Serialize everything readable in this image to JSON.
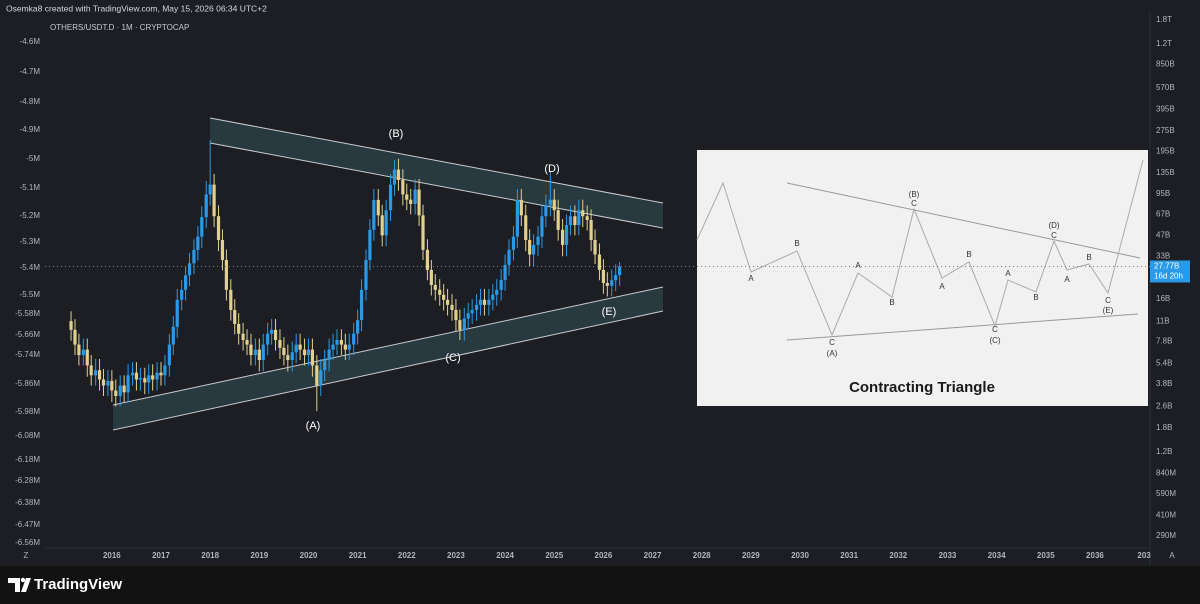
{
  "header": {
    "credit": "Osemka8 created with TradingView.com, May 15, 2026 06:34 UTC+2"
  },
  "chart_data": {
    "type": "candlestick",
    "title": "OTHERS/USDT.D · 1M · CRYPTOCAP",
    "log_y": true,
    "up_color": "#2a9ae6",
    "down_color": "#e2d08c",
    "x": [
      2015.17,
      2015.25,
      2015.33,
      2015.42,
      2015.5,
      2015.58,
      2015.67,
      2015.75,
      2015.83,
      2015.92,
      2016,
      2016.08,
      2016.17,
      2016.25,
      2016.33,
      2016.42,
      2016.5,
      2016.58,
      2016.67,
      2016.75,
      2016.83,
      2016.92,
      2017,
      2017.08,
      2017.17,
      2017.25,
      2017.33,
      2017.42,
      2017.5,
      2017.58,
      2017.67,
      2017.75,
      2017.83,
      2017.92,
      2018,
      2018.08,
      2018.17,
      2018.25,
      2018.33,
      2018.42,
      2018.5,
      2018.58,
      2018.67,
      2018.75,
      2018.83,
      2018.92,
      2019,
      2019.08,
      2019.17,
      2019.25,
      2019.33,
      2019.42,
      2019.5,
      2019.58,
      2019.67,
      2019.75,
      2019.83,
      2019.92,
      2020,
      2020.08,
      2020.17,
      2020.25,
      2020.33,
      2020.42,
      2020.5,
      2020.58,
      2020.67,
      2020.75,
      2020.83,
      2020.92,
      2021,
      2021.08,
      2021.17,
      2021.25,
      2021.33,
      2021.42,
      2021.5,
      2021.58,
      2021.67,
      2021.75,
      2021.83,
      2021.92,
      2022,
      2022.08,
      2022.17,
      2022.25,
      2022.33,
      2022.42,
      2022.5,
      2022.58,
      2022.67,
      2022.75,
      2022.83,
      2022.92,
      2023,
      2023.08,
      2023.17,
      2023.25,
      2023.33,
      2023.42,
      2023.5,
      2023.58,
      2023.67,
      2023.75,
      2023.83,
      2023.92,
      2024,
      2024.08,
      2024.17,
      2024.25,
      2024.33,
      2024.42,
      2024.5,
      2024.58,
      2024.67,
      2024.75,
      2024.83,
      2024.92,
      2025,
      2025.08,
      2025.17,
      2025.25,
      2025.33,
      2025.42,
      2025.5,
      2025.58,
      2025.67,
      2025.75,
      2025.83,
      2025.92,
      2026,
      2026.08,
      2026.17,
      2026.25,
      2026.33
    ],
    "open": [
      11,
      9.5,
      7.4,
      6.2,
      6.8,
      5.2,
      4.4,
      4.8,
      4.1,
      3.7,
      4.0,
      3.4,
      3.1,
      3.7,
      3.3,
      4.4,
      4.6,
      4.1,
      4.2,
      3.9,
      4.4,
      4.1,
      4.6,
      4.4,
      5.2,
      7.4,
      10,
      15.8,
      18.7,
      23.9,
      29.3,
      36.8,
      46,
      64,
      94,
      111,
      65,
      43.5,
      31,
      18.7,
      13.3,
      10.5,
      8.9,
      8,
      7.4,
      6.2,
      6.8,
      5.7,
      7.4,
      8.9,
      9.5,
      8,
      7,
      6.2,
      5.7,
      6.5,
      7.4,
      6.8,
      6.2,
      6.8,
      5.2,
      3.7,
      4.8,
      5.7,
      6.8,
      7.4,
      8,
      7.4,
      6.8,
      7.4,
      8.9,
      11.2,
      18.7,
      31,
      51.6,
      85.7,
      66,
      47,
      72,
      111,
      143,
      120,
      94,
      86,
      80,
      102,
      66,
      36.8,
      26.2,
      20.3,
      18.7,
      17.2,
      15.8,
      14.5,
      13.3,
      11.2,
      9.5,
      11.5,
      12.6,
      13.3,
      14.5,
      15.8,
      14.5,
      15.8,
      17.2,
      18.7,
      22.1,
      28.5,
      36.8,
      46,
      85.7,
      66,
      43.5,
      34,
      40,
      46,
      65,
      78,
      86,
      72,
      51.6,
      40,
      56,
      65,
      56,
      72,
      65,
      61,
      43.5,
      34,
      26.2,
      21,
      20,
      22,
      24
    ],
    "high": [
      13,
      11.4,
      8.9,
      8.2,
      8.2,
      6.2,
      5.8,
      5.8,
      4.9,
      4.8,
      4.8,
      4.1,
      4.4,
      4.4,
      5.3,
      5.5,
      5.5,
      5,
      5,
      5.3,
      5.3,
      5.5,
      5.5,
      6.2,
      8.9,
      12,
      19,
      22,
      28,
      35,
      44,
      55,
      77,
      118,
      236,
      133,
      78,
      52,
      37,
      22.4,
      16,
      12.6,
      10.7,
      9.6,
      8.9,
      8.2,
      8.2,
      8.9,
      10.7,
      11.4,
      11.4,
      9.6,
      8.4,
      7.4,
      7.8,
      8.9,
      8.9,
      8.2,
      8.2,
      8.2,
      6.2,
      5.8,
      6.8,
      8.2,
      8.9,
      9.6,
      9.6,
      8.9,
      8.9,
      10.7,
      13.4,
      22.4,
      37,
      62,
      103,
      103,
      79,
      86,
      133,
      168,
      172,
      144,
      113,
      103,
      122,
      122,
      79,
      44,
      31,
      24.4,
      22.4,
      20.6,
      19,
      17.4,
      16,
      13.4,
      13.8,
      15,
      16,
      17.4,
      19,
      19,
      19,
      20.6,
      22.4,
      26.5,
      34,
      44,
      55,
      103,
      103,
      79,
      52,
      48,
      55,
      78,
      94,
      140,
      103,
      86,
      62,
      67,
      78,
      78,
      86,
      86,
      78,
      73,
      52,
      41,
      31.4,
      25.2,
      26.4,
      28.8,
      30
    ],
    "low": [
      7.9,
      6.2,
      5.2,
      5.2,
      4.3,
      3.7,
      3.7,
      3.4,
      3.1,
      3.1,
      2.8,
      2.6,
      2.6,
      2.8,
      2.8,
      3.7,
      3.4,
      3.4,
      3.2,
      3.2,
      3.4,
      3.4,
      3.7,
      3.7,
      4.3,
      6.2,
      8.3,
      13.2,
      15.6,
      19.9,
      24.4,
      30.7,
      38,
      53,
      78,
      54,
      36,
      26,
      15.6,
      11.1,
      8.8,
      7.4,
      6.7,
      6.2,
      5.2,
      5.2,
      4.7,
      4.7,
      6.2,
      7.4,
      6.7,
      5.8,
      5.2,
      4.7,
      4.7,
      5.4,
      5.7,
      5.2,
      5.2,
      4.3,
      2.4,
      3.1,
      4,
      4.7,
      5.7,
      6.2,
      6.2,
      5.7,
      5.7,
      6.2,
      7.4,
      9.3,
      15.6,
      26,
      43,
      55,
      39,
      39,
      60,
      92,
      100,
      78,
      72,
      67,
      67,
      55,
      31,
      22,
      17,
      15.6,
      14.3,
      13.2,
      12.1,
      11.1,
      9.3,
      8,
      7.9,
      9.6,
      10.5,
      11.1,
      12.1,
      12.1,
      12.1,
      13.2,
      14.3,
      15.6,
      18.4,
      23.8,
      30.7,
      38,
      55,
      36,
      28,
      28,
      33,
      38,
      54,
      65,
      60,
      43,
      33,
      33,
      47,
      47,
      47,
      54,
      51,
      36,
      29,
      22,
      17.5,
      16.7,
      16.7,
      18.3,
      20
    ],
    "close": [
      9.5,
      7.4,
      6.2,
      6.8,
      5.2,
      4.4,
      4.8,
      4.1,
      3.7,
      4.0,
      3.4,
      3.1,
      3.7,
      3.3,
      4.4,
      4.6,
      4.1,
      4.2,
      3.9,
      4.4,
      4.1,
      4.6,
      4.4,
      5.2,
      7.4,
      10,
      15.8,
      18.7,
      23.9,
      29.3,
      36.8,
      46,
      64,
      94,
      111,
      65,
      43.5,
      31,
      18.7,
      13.3,
      10.5,
      8.9,
      8,
      7.4,
      6.2,
      6.8,
      5.7,
      7.4,
      8.9,
      9.5,
      8,
      7,
      6.2,
      5.7,
      6.5,
      7.4,
      6.8,
      6.2,
      6.8,
      5.2,
      3.7,
      4.8,
      5.7,
      6.8,
      7.4,
      8,
      7.4,
      6.8,
      7.4,
      8.9,
      11.2,
      18.7,
      31,
      51.6,
      85.7,
      66,
      47,
      72,
      111,
      143,
      120,
      94,
      86,
      80,
      102,
      66,
      36.8,
      26.2,
      20.3,
      18.7,
      17.2,
      15.8,
      14.5,
      13.3,
      11.2,
      9.5,
      11.5,
      12.6,
      13.3,
      14.5,
      15.8,
      14.5,
      15.8,
      17.2,
      18.7,
      22.1,
      28.5,
      36.8,
      46,
      85.7,
      66,
      43.5,
      34,
      40,
      46,
      65,
      78,
      86,
      72,
      51.6,
      40,
      56,
      65,
      56,
      72,
      65,
      61,
      43.5,
      34,
      26.2,
      21,
      20,
      22,
      24,
      27.77
    ],
    "xlim": [
      2014.64,
      2037.12
    ],
    "xticks": [
      2016,
      2017,
      2018,
      2019,
      2020,
      2021,
      2022,
      2023,
      2024,
      2025,
      2026,
      2027,
      2028,
      2029,
      2030,
      2031,
      2032,
      2033,
      2034,
      2035,
      2036,
      {
        "value": 2037,
        "label": "203"
      }
    ],
    "ylim": [
      0.29,
      1800
    ],
    "yticks": [
      {
        "value": 1800,
        "label": "1.8T"
      },
      {
        "value": 1200,
        "label": "1.2T"
      },
      {
        "value": 850,
        "label": "850B"
      },
      {
        "value": 570,
        "label": "570B"
      },
      {
        "value": 395,
        "label": "395B"
      },
      {
        "value": 275,
        "label": "275B"
      },
      {
        "value": 195,
        "label": "195B"
      },
      {
        "value": 135,
        "label": "135B"
      },
      {
        "value": 95,
        "label": "95B"
      },
      {
        "value": 67,
        "label": "67B"
      },
      {
        "value": 47,
        "label": "47B"
      },
      {
        "value": 33,
        "label": "33B"
      },
      {
        "value": 16,
        "label": "16B"
      },
      {
        "value": 11,
        "label": "11B"
      },
      {
        "value": 7.8,
        "label": "7.8B"
      },
      {
        "value": 5.4,
        "label": "5.4B"
      },
      {
        "value": 3.8,
        "label": "3.8B"
      },
      {
        "value": 2.6,
        "label": "2.6B"
      },
      {
        "value": 1.8,
        "label": "1.8B"
      },
      {
        "value": 1.2,
        "label": "1.2B"
      },
      {
        "value": 0.84,
        "label": "840M"
      },
      {
        "value": 0.59,
        "label": "590M"
      },
      {
        "value": 0.41,
        "label": "410M"
      },
      {
        "value": 0.29,
        "label": "290M"
      }
    ],
    "last_price": {
      "value": 27.77,
      "label": "27.77B"
    },
    "countdown": "16d 20h",
    "left_axis_labels": [
      "-4.6M",
      "-4.7M",
      "-4.8M",
      "-4.9M",
      "-5M",
      "-5.1M",
      "-5.2M",
      "-5.3M",
      "-5.4M",
      "-5.5M",
      "-5.58M",
      "-5.66M",
      "-5.74M",
      "-5.86M",
      "-5.98M",
      "-6.08M",
      "-6.18M",
      "-6.28M",
      "-6.38M",
      "-6.47M",
      "-6.56M"
    ],
    "annotations": [
      "(A)",
      "(B)",
      "(C)",
      "(D)",
      "(E)"
    ]
  },
  "inset": {
    "title": "Contracting Triangle",
    "labels": [
      "A",
      "B",
      "C",
      "(A)",
      "A",
      "B",
      "(B)",
      "C",
      "A",
      "B",
      "C",
      "(C)",
      "A",
      "B",
      "(D)",
      "C",
      "A",
      "B",
      "C",
      "(E)"
    ]
  },
  "ui": {
    "corner_left": "Z",
    "corner_right": "A"
  },
  "footer": {
    "brand": "TradingView"
  }
}
